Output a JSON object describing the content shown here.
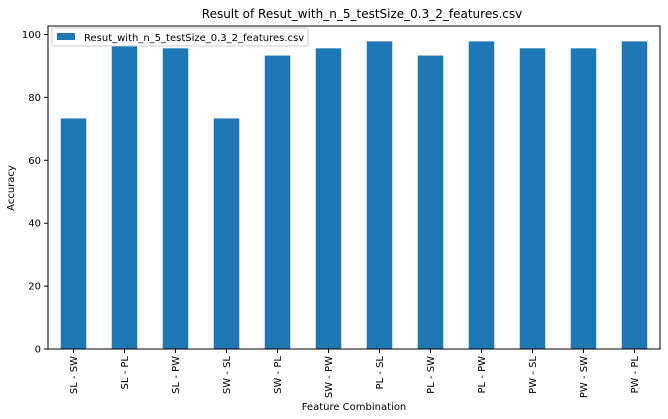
{
  "chart_data": {
    "type": "bar",
    "title": "Result of  Resut_with_n_5_testSize_0.3_2_features.csv",
    "xlabel": "Feature Combination",
    "ylabel": "Accuracy",
    "categories": [
      "SL - SW",
      "SL - PL",
      "SL - PW",
      "SW - SL",
      "SW - PL",
      "SW - PW",
      "PL - SL",
      "PL - SW",
      "PL - PW",
      "PW - SL",
      "PW - SW",
      "PW - PL"
    ],
    "series": [
      {
        "name": "Resut_with_n_5_testSize_0.3_2_features.csv",
        "values": [
          73.3,
          97.8,
          95.6,
          73.3,
          93.3,
          95.6,
          97.8,
          93.3,
          97.8,
          95.6,
          95.6,
          97.8
        ],
        "color": "#1f77b4"
      }
    ],
    "ylim": [
      0,
      102.7
    ],
    "yticks": [
      0,
      20,
      40,
      60,
      80,
      100
    ],
    "grid": false,
    "legend_position": "top-left"
  }
}
